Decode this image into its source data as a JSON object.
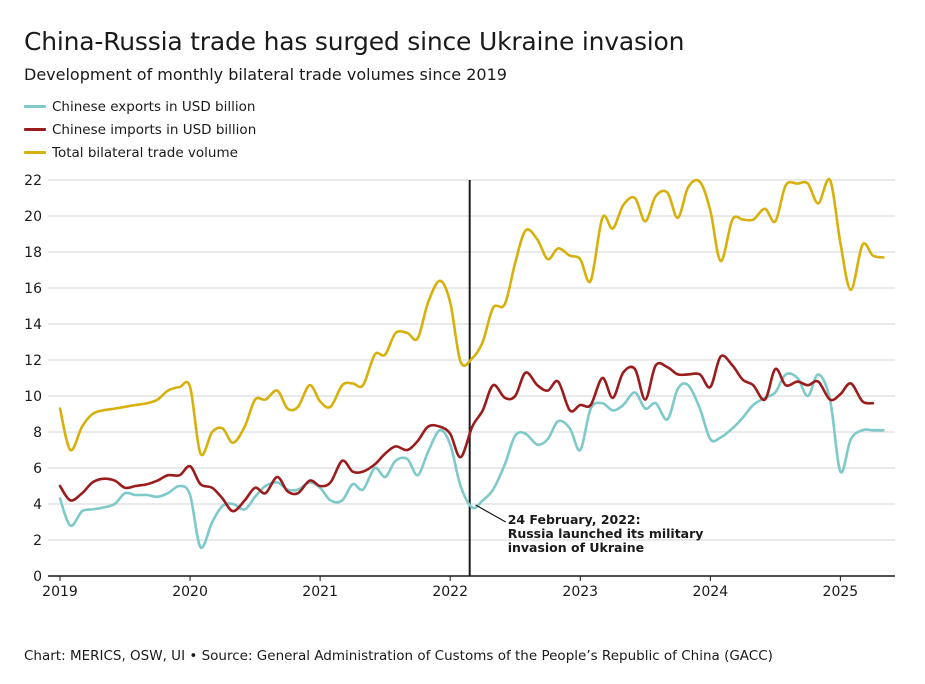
{
  "header": {
    "title": "China-Russia trade has surged since Ukraine invasion",
    "subtitle": "Development of monthly bilateral trade volumes since 2019"
  },
  "footer": {
    "source": "Chart: MERICS, OSW, UI • Source: General Administration of Customs of the People’s Republic of China (GACC)"
  },
  "chart_data": {
    "type": "line",
    "title": "China-Russia trade has surged since Ukraine invasion",
    "subtitle": "Development of monthly bilateral trade volumes since 2019",
    "xlabel": "",
    "ylabel": "",
    "xlim": [
      2019.0,
      2025.42
    ],
    "ylim": [
      0,
      22
    ],
    "yticks": [
      0,
      2,
      4,
      6,
      8,
      10,
      12,
      14,
      16,
      18,
      20,
      22
    ],
    "xticks": [
      2019,
      2020,
      2021,
      2022,
      2023,
      2024,
      2025
    ],
    "grid": true,
    "legend_position": "top-left",
    "series": [
      {
        "name": "Chinese exports in USD billion",
        "color": "#7ec9c9",
        "points": [
          [
            2019.0,
            4.3
          ],
          [
            2019.08,
            2.8
          ],
          [
            2019.17,
            3.6
          ],
          [
            2019.25,
            3.7
          ],
          [
            2019.33,
            3.8
          ],
          [
            2019.42,
            4.0
          ],
          [
            2019.5,
            4.6
          ],
          [
            2019.58,
            4.5
          ],
          [
            2019.67,
            4.5
          ],
          [
            2019.75,
            4.4
          ],
          [
            2019.83,
            4.6
          ],
          [
            2019.92,
            5.0
          ],
          [
            2020.0,
            4.5
          ],
          [
            2020.08,
            1.6
          ],
          [
            2020.17,
            3.0
          ],
          [
            2020.25,
            3.9
          ],
          [
            2020.33,
            4.0
          ],
          [
            2020.42,
            3.7
          ],
          [
            2020.5,
            4.4
          ],
          [
            2020.58,
            5.0
          ],
          [
            2020.67,
            5.2
          ],
          [
            2020.75,
            4.8
          ],
          [
            2020.83,
            4.8
          ],
          [
            2020.92,
            5.2
          ],
          [
            2021.0,
            4.9
          ],
          [
            2021.08,
            4.2
          ],
          [
            2021.17,
            4.2
          ],
          [
            2021.25,
            5.1
          ],
          [
            2021.33,
            4.8
          ],
          [
            2021.42,
            6.0
          ],
          [
            2021.5,
            5.5
          ],
          [
            2021.58,
            6.4
          ],
          [
            2021.67,
            6.5
          ],
          [
            2021.75,
            5.6
          ],
          [
            2021.83,
            6.9
          ],
          [
            2021.92,
            8.1
          ],
          [
            2022.0,
            7.3
          ],
          [
            2022.08,
            5.0
          ],
          [
            2022.17,
            3.8
          ],
          [
            2022.25,
            4.2
          ],
          [
            2022.33,
            4.8
          ],
          [
            2022.42,
            6.2
          ],
          [
            2022.5,
            7.8
          ],
          [
            2022.58,
            7.9
          ],
          [
            2022.67,
            7.3
          ],
          [
            2022.75,
            7.6
          ],
          [
            2022.83,
            8.6
          ],
          [
            2022.92,
            8.2
          ],
          [
            2023.0,
            7.0
          ],
          [
            2023.08,
            9.3
          ],
          [
            2023.17,
            9.6
          ],
          [
            2023.25,
            9.2
          ],
          [
            2023.33,
            9.5
          ],
          [
            2023.42,
            10.2
          ],
          [
            2023.5,
            9.3
          ],
          [
            2023.58,
            9.6
          ],
          [
            2023.67,
            8.7
          ],
          [
            2023.75,
            10.4
          ],
          [
            2023.83,
            10.6
          ],
          [
            2023.92,
            9.3
          ],
          [
            2024.0,
            7.6
          ],
          [
            2024.08,
            7.7
          ],
          [
            2024.17,
            8.2
          ],
          [
            2024.25,
            8.8
          ],
          [
            2024.33,
            9.5
          ],
          [
            2024.42,
            9.9
          ],
          [
            2024.5,
            10.2
          ],
          [
            2024.58,
            11.2
          ],
          [
            2024.67,
            11.0
          ],
          [
            2024.75,
            10.0
          ],
          [
            2024.83,
            11.2
          ],
          [
            2024.92,
            9.8
          ],
          [
            2025.0,
            5.8
          ],
          [
            2025.08,
            7.6
          ],
          [
            2025.17,
            8.1
          ],
          [
            2025.25,
            8.1
          ],
          [
            2025.33,
            8.1
          ]
        ]
      },
      {
        "name": "Chinese imports in USD billion",
        "color": "#9b1c1c",
        "points": [
          [
            2019.0,
            5.0
          ],
          [
            2019.08,
            4.2
          ],
          [
            2019.17,
            4.6
          ],
          [
            2019.25,
            5.2
          ],
          [
            2019.33,
            5.4
          ],
          [
            2019.42,
            5.3
          ],
          [
            2019.5,
            4.9
          ],
          [
            2019.58,
            5.0
          ],
          [
            2019.67,
            5.1
          ],
          [
            2019.75,
            5.3
          ],
          [
            2019.83,
            5.6
          ],
          [
            2019.92,
            5.6
          ],
          [
            2020.0,
            6.1
          ],
          [
            2020.08,
            5.1
          ],
          [
            2020.17,
            4.9
          ],
          [
            2020.25,
            4.3
          ],
          [
            2020.33,
            3.6
          ],
          [
            2020.42,
            4.2
          ],
          [
            2020.5,
            4.9
          ],
          [
            2020.58,
            4.6
          ],
          [
            2020.67,
            5.5
          ],
          [
            2020.75,
            4.7
          ],
          [
            2020.83,
            4.6
          ],
          [
            2020.92,
            5.3
          ],
          [
            2021.0,
            5.0
          ],
          [
            2021.08,
            5.2
          ],
          [
            2021.17,
            6.4
          ],
          [
            2021.25,
            5.8
          ],
          [
            2021.33,
            5.8
          ],
          [
            2021.42,
            6.2
          ],
          [
            2021.5,
            6.8
          ],
          [
            2021.58,
            7.2
          ],
          [
            2021.67,
            7.0
          ],
          [
            2021.75,
            7.5
          ],
          [
            2021.83,
            8.3
          ],
          [
            2021.92,
            8.3
          ],
          [
            2022.0,
            7.9
          ],
          [
            2022.08,
            6.6
          ],
          [
            2022.17,
            8.3
          ],
          [
            2022.25,
            9.2
          ],
          [
            2022.33,
            10.6
          ],
          [
            2022.42,
            9.9
          ],
          [
            2022.5,
            10.0
          ],
          [
            2022.58,
            11.3
          ],
          [
            2022.67,
            10.6
          ],
          [
            2022.75,
            10.3
          ],
          [
            2022.83,
            10.8
          ],
          [
            2022.92,
            9.2
          ],
          [
            2023.0,
            9.5
          ],
          [
            2023.08,
            9.5
          ],
          [
            2023.17,
            11.0
          ],
          [
            2023.25,
            9.9
          ],
          [
            2023.33,
            11.3
          ],
          [
            2023.42,
            11.5
          ],
          [
            2023.5,
            9.8
          ],
          [
            2023.58,
            11.7
          ],
          [
            2023.67,
            11.6
          ],
          [
            2023.75,
            11.2
          ],
          [
            2023.83,
            11.2
          ],
          [
            2023.92,
            11.2
          ],
          [
            2024.0,
            10.5
          ],
          [
            2024.08,
            12.2
          ],
          [
            2024.17,
            11.7
          ],
          [
            2024.25,
            10.9
          ],
          [
            2024.33,
            10.6
          ],
          [
            2024.42,
            9.8
          ],
          [
            2024.5,
            11.5
          ],
          [
            2024.58,
            10.6
          ],
          [
            2024.67,
            10.8
          ],
          [
            2024.75,
            10.6
          ],
          [
            2024.83,
            10.8
          ],
          [
            2024.92,
            9.8
          ],
          [
            2025.0,
            10.1
          ],
          [
            2025.08,
            10.7
          ],
          [
            2025.17,
            9.7
          ],
          [
            2025.25,
            9.6
          ]
        ]
      },
      {
        "name": "Total bilateral trade volume",
        "color": "#d8b00c",
        "points": [
          [
            2019.0,
            9.3
          ],
          [
            2019.08,
            7.0
          ],
          [
            2019.17,
            8.3
          ],
          [
            2019.25,
            9.0
          ],
          [
            2019.33,
            9.2
          ],
          [
            2019.42,
            9.3
          ],
          [
            2019.5,
            9.4
          ],
          [
            2019.58,
            9.5
          ],
          [
            2019.67,
            9.6
          ],
          [
            2019.75,
            9.8
          ],
          [
            2019.83,
            10.3
          ],
          [
            2019.92,
            10.5
          ],
          [
            2020.0,
            10.5
          ],
          [
            2020.08,
            6.8
          ],
          [
            2020.17,
            8.0
          ],
          [
            2020.25,
            8.2
          ],
          [
            2020.33,
            7.4
          ],
          [
            2020.42,
            8.3
          ],
          [
            2020.5,
            9.8
          ],
          [
            2020.58,
            9.8
          ],
          [
            2020.67,
            10.3
          ],
          [
            2020.75,
            9.3
          ],
          [
            2020.83,
            9.4
          ],
          [
            2020.92,
            10.6
          ],
          [
            2021.0,
            9.7
          ],
          [
            2021.08,
            9.4
          ],
          [
            2021.17,
            10.6
          ],
          [
            2021.25,
            10.7
          ],
          [
            2021.33,
            10.6
          ],
          [
            2021.42,
            12.3
          ],
          [
            2021.5,
            12.3
          ],
          [
            2021.58,
            13.5
          ],
          [
            2021.67,
            13.5
          ],
          [
            2021.75,
            13.2
          ],
          [
            2021.83,
            15.2
          ],
          [
            2021.92,
            16.4
          ],
          [
            2022.0,
            15.2
          ],
          [
            2022.08,
            11.9
          ],
          [
            2022.17,
            12.1
          ],
          [
            2022.25,
            13.0
          ],
          [
            2022.33,
            14.9
          ],
          [
            2022.42,
            15.1
          ],
          [
            2022.5,
            17.4
          ],
          [
            2022.58,
            19.2
          ],
          [
            2022.67,
            18.7
          ],
          [
            2022.75,
            17.6
          ],
          [
            2022.83,
            18.2
          ],
          [
            2022.92,
            17.8
          ],
          [
            2023.0,
            17.6
          ],
          [
            2023.08,
            16.4
          ],
          [
            2023.17,
            19.9
          ],
          [
            2023.25,
            19.3
          ],
          [
            2023.33,
            20.6
          ],
          [
            2023.42,
            21.0
          ],
          [
            2023.5,
            19.7
          ],
          [
            2023.58,
            21.1
          ],
          [
            2023.67,
            21.3
          ],
          [
            2023.75,
            19.9
          ],
          [
            2023.83,
            21.6
          ],
          [
            2023.92,
            21.9
          ],
          [
            2024.0,
            20.3
          ],
          [
            2024.08,
            17.5
          ],
          [
            2024.17,
            19.8
          ],
          [
            2024.25,
            19.8
          ],
          [
            2024.33,
            19.8
          ],
          [
            2024.42,
            20.4
          ],
          [
            2024.5,
            19.7
          ],
          [
            2024.58,
            21.7
          ],
          [
            2024.67,
            21.8
          ],
          [
            2024.75,
            21.8
          ],
          [
            2024.83,
            20.7
          ],
          [
            2024.92,
            22.0
          ],
          [
            2025.0,
            18.5
          ],
          [
            2025.08,
            15.9
          ],
          [
            2025.17,
            18.4
          ],
          [
            2025.25,
            17.8
          ],
          [
            2025.33,
            17.7
          ]
        ]
      }
    ],
    "annotation": {
      "x": 2022.15,
      "lines": [
        "24 February, 2022:",
        "Russia launched its military",
        "invasion of Ukraine"
      ]
    }
  }
}
